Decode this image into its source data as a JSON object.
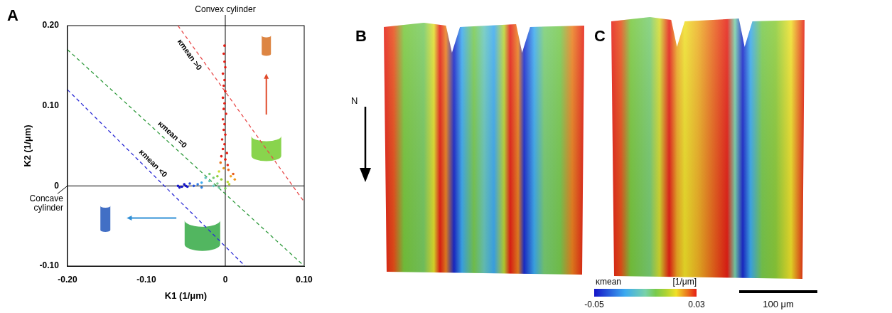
{
  "chart_data": {
    "type": "scatter",
    "marker": "circle",
    "grid": false,
    "x_label": "K1 (1/μm)",
    "y_label": "K2 (1/μm)",
    "xlim": [
      -0.2,
      0.1
    ],
    "ylim": [
      -0.1,
      0.2
    ],
    "xticks": [
      {
        "value": -0.2,
        "label": "-0.20"
      },
      {
        "value": -0.1,
        "label": "-0.10"
      },
      0,
      {
        "value": 0.1,
        "label": "0.10"
      }
    ],
    "yticks": [
      {
        "value": -0.1,
        "label": "-0.10"
      },
      0,
      {
        "value": 0.1,
        "label": "0.10"
      },
      {
        "value": 0.2,
        "label": "0.20"
      }
    ],
    "x": [
      -0.001,
      -0.002,
      -0.001,
      0,
      -0.003,
      -0.001,
      -0.002,
      0,
      -0.003,
      -0.001,
      -0.002,
      0.001,
      -0.003,
      -0.001,
      -0.002,
      0,
      -0.004,
      -0.001,
      -0.003,
      0.002,
      -0.005,
      0,
      -0.006,
      0.003,
      -0.002,
      0.004,
      0.01,
      0.007,
      -0.008,
      0.012,
      -0.01,
      -0.005,
      0.003,
      -0.015,
      -0.02,
      0.005,
      -0.01,
      -0.02,
      -0.025,
      -0.015,
      -0.008,
      -0.03,
      0,
      -0.035,
      -0.04,
      -0.03,
      -0.045,
      -0.05,
      -0.055,
      -0.06,
      -0.052,
      -0.058,
      -0.048
    ],
    "y": [
      0.175,
      0.165,
      0.155,
      0.148,
      0.14,
      0.132,
      0.125,
      0.118,
      0.11,
      0.103,
      0.096,
      0.09,
      0.083,
      0.077,
      0.07,
      0.064,
      0.058,
      0.052,
      0.046,
      0.041,
      0.037,
      0.033,
      0.029,
      0.026,
      0.022,
      0.02,
      0.015,
      0.012,
      0.018,
      0.008,
      0.012,
      0.008,
      0.005,
      0.01,
      0.015,
      0.002,
      0.003,
      0.006,
      0.01,
      0,
      -0.002,
      0.004,
      -0.003,
      0.002,
      0,
      -0.002,
      0.003,
      0,
      -0.001,
      0,
      0.002,
      -0.002,
      -0.001
    ],
    "lines": [
      {
        "label": "κmean >0",
        "color": "#e84a4a",
        "line_style": "dashed",
        "x": [
          -0.06,
          0.1
        ],
        "y": [
          0.2,
          -0.02
        ]
      },
      {
        "label": "κmean =0",
        "color": "#2f9a3c",
        "line_style": "dashed",
        "x": [
          -0.2,
          0.1
        ],
        "y": [
          0.17,
          -0.1
        ]
      },
      {
        "label": "κmean <0",
        "color": "#2b2bd6",
        "line_style": "dashed",
        "x": [
          -0.2,
          0.025
        ],
        "y": [
          0.12,
          -0.1
        ]
      }
    ],
    "annotations": [
      {
        "text": "Convex cylinder",
        "x": 0,
        "y": 0.2
      },
      {
        "text": "Concave cylinder",
        "x": -0.2,
        "y": 0
      }
    ]
  },
  "panel_labels": [
    "A",
    "B",
    "C"
  ],
  "surfaces": {
    "north_label": "N",
    "colorbar": {
      "label": "κmean",
      "unit": "[1/μm]",
      "range": [
        -0.05,
        0.03
      ],
      "ticks": [
        -0.05,
        0.03
      ]
    },
    "scale_bar": {
      "label": "100 μm",
      "length": 100
    }
  }
}
